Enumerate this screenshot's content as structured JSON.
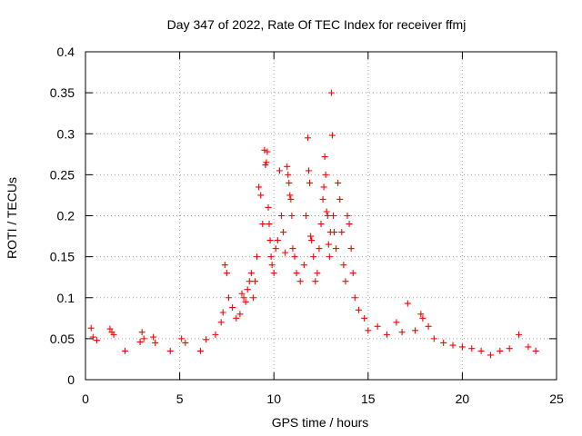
{
  "chart_data": {
    "type": "scatter",
    "title": "Day 347 of 2022, Rate Of TEC Index for receiver ffmj",
    "xlabel": "GPS time / hours",
    "ylabel": "ROTI / TECUs",
    "xlim": [
      0,
      25
    ],
    "ylim": [
      0,
      0.4
    ],
    "xticks": [
      "0",
      "5",
      "10",
      "15",
      "20",
      "25"
    ],
    "yticks": [
      "0",
      "0.05",
      "0.1",
      "0.15",
      "0.2",
      "0.25",
      "0.3",
      "0.35",
      "0.4"
    ],
    "grid": true,
    "marker": "+",
    "color": "#ff0000",
    "series": [
      {
        "points": [
          [
            0.3,
            0.063
          ],
          [
            0.4,
            0.052
          ],
          [
            0.6,
            0.048
          ],
          [
            1.3,
            0.062
          ],
          [
            1.4,
            0.058
          ],
          [
            1.5,
            0.055
          ],
          [
            2.1,
            0.035
          ],
          [
            2.9,
            0.046
          ],
          [
            3.0,
            0.058
          ],
          [
            3.1,
            0.05
          ],
          [
            3.6,
            0.052
          ],
          [
            3.7,
            0.045
          ],
          [
            4.5,
            0.035
          ],
          [
            5.1,
            0.05
          ],
          [
            5.3,
            0.045
          ],
          [
            6.1,
            0.035
          ],
          [
            6.4,
            0.049
          ],
          [
            6.9,
            0.055
          ],
          [
            7.2,
            0.07
          ],
          [
            7.3,
            0.082
          ],
          [
            7.4,
            0.14
          ],
          [
            7.5,
            0.13
          ],
          [
            7.6,
            0.1
          ],
          [
            7.8,
            0.088
          ],
          [
            8.0,
            0.075
          ],
          [
            8.2,
            0.08
          ],
          [
            8.3,
            0.105
          ],
          [
            8.4,
            0.1
          ],
          [
            8.5,
            0.095
          ],
          [
            8.6,
            0.11
          ],
          [
            8.7,
            0.12
          ],
          [
            8.8,
            0.13
          ],
          [
            8.9,
            0.1
          ],
          [
            9.0,
            0.12
          ],
          [
            9.1,
            0.15
          ],
          [
            9.2,
            0.235
          ],
          [
            9.3,
            0.225
          ],
          [
            9.4,
            0.19
          ],
          [
            9.5,
            0.28
          ],
          [
            9.55,
            0.262
          ],
          [
            9.6,
            0.265
          ],
          [
            9.65,
            0.278
          ],
          [
            9.7,
            0.21
          ],
          [
            9.75,
            0.19
          ],
          [
            9.8,
            0.17
          ],
          [
            9.85,
            0.15
          ],
          [
            9.9,
            0.14
          ],
          [
            10.0,
            0.13
          ],
          [
            10.1,
            0.16
          ],
          [
            10.2,
            0.17
          ],
          [
            10.3,
            0.255
          ],
          [
            10.4,
            0.2
          ],
          [
            10.5,
            0.18
          ],
          [
            10.6,
            0.155
          ],
          [
            10.7,
            0.26
          ],
          [
            10.75,
            0.25
          ],
          [
            10.8,
            0.24
          ],
          [
            10.85,
            0.225
          ],
          [
            10.9,
            0.22
          ],
          [
            10.95,
            0.2
          ],
          [
            11.0,
            0.16
          ],
          [
            11.1,
            0.15
          ],
          [
            11.2,
            0.13
          ],
          [
            11.4,
            0.12
          ],
          [
            11.6,
            0.14
          ],
          [
            11.7,
            0.2
          ],
          [
            11.8,
            0.295
          ],
          [
            11.85,
            0.255
          ],
          [
            11.9,
            0.24
          ],
          [
            11.95,
            0.175
          ],
          [
            12.0,
            0.17
          ],
          [
            12.1,
            0.15
          ],
          [
            12.2,
            0.12
          ],
          [
            12.3,
            0.13
          ],
          [
            12.4,
            0.16
          ],
          [
            12.5,
            0.19
          ],
          [
            12.6,
            0.22
          ],
          [
            12.65,
            0.235
          ],
          [
            12.7,
            0.272
          ],
          [
            12.75,
            0.25
          ],
          [
            12.8,
            0.205
          ],
          [
            12.85,
            0.2
          ],
          [
            12.9,
            0.165
          ],
          [
            12.95,
            0.15
          ],
          [
            13.0,
            0.18
          ],
          [
            13.05,
            0.35
          ],
          [
            13.1,
            0.298
          ],
          [
            13.15,
            0.2
          ],
          [
            13.2,
            0.18
          ],
          [
            13.3,
            0.16
          ],
          [
            13.4,
            0.24
          ],
          [
            13.5,
            0.22
          ],
          [
            13.6,
            0.18
          ],
          [
            13.7,
            0.14
          ],
          [
            13.8,
            0.12
          ],
          [
            13.9,
            0.2
          ],
          [
            14.0,
            0.19
          ],
          [
            14.1,
            0.16
          ],
          [
            14.2,
            0.13
          ],
          [
            14.3,
            0.1
          ],
          [
            14.5,
            0.085
          ],
          [
            14.8,
            0.075
          ],
          [
            15.0,
            0.06
          ],
          [
            15.5,
            0.065
          ],
          [
            16.0,
            0.055
          ],
          [
            16.5,
            0.07
          ],
          [
            16.8,
            0.058
          ],
          [
            17.1,
            0.093
          ],
          [
            17.5,
            0.06
          ],
          [
            17.8,
            0.08
          ],
          [
            17.9,
            0.075
          ],
          [
            18.2,
            0.065
          ],
          [
            18.5,
            0.05
          ],
          [
            19.0,
            0.045
          ],
          [
            19.5,
            0.042
          ],
          [
            20.0,
            0.04
          ],
          [
            20.5,
            0.038
          ],
          [
            21.0,
            0.035
          ],
          [
            21.5,
            0.03
          ],
          [
            22.0,
            0.035
          ],
          [
            22.5,
            0.038
          ],
          [
            23.0,
            0.055
          ],
          [
            23.5,
            0.04
          ],
          [
            23.9,
            0.035
          ]
        ]
      }
    ]
  }
}
